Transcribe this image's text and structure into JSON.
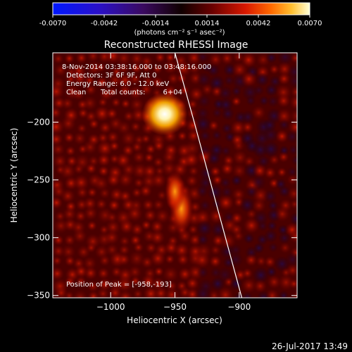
{
  "colorbar": {
    "tick_labels": [
      "-0.0070",
      "-0.0042",
      "-0.0014",
      "0.0014",
      "0.0042",
      "0.0070"
    ],
    "unit_label": "(photons cm⁻² s⁻¹ asec⁻²)",
    "range": [
      -0.007,
      0.007
    ]
  },
  "colors": {
    "background": "#000000",
    "text": "#ffffff",
    "limb_line": "#ffffff"
  },
  "chart_data": {
    "type": "heatmap",
    "title": "Reconstructed RHESSI Image",
    "xlabel": "Heliocentric X (arcsec)",
    "ylabel": "Heliocentric Y (arcsec)",
    "xlim": [
      -1045,
      -855
    ],
    "ylim": [
      -352,
      -140
    ],
    "xticks": [
      -1000,
      -950,
      -900
    ],
    "yticks": [
      -200,
      -250,
      -300,
      -350
    ],
    "xtick_labels": [
      "−1000",
      "−950",
      "−900"
    ],
    "ytick_labels": [
      "−200",
      "−250",
      "−300",
      "−350"
    ],
    "annotations": {
      "time_range": "8-Nov-2014 03:38:16.000 to 03:48:16.000",
      "detectors": "Detectors: 3F 6F 9F, Att 0",
      "energy": "Energy Range: 6.0 - 12.0 keV",
      "method": "Clean",
      "total_counts": "Total counts: ",
      "total_counts_value": "6+04",
      "peak": "Position of Peak = [-958,-193]"
    },
    "sources": [
      {
        "x": -958,
        "y": -193,
        "intensity": 1.0
      },
      {
        "x": -945,
        "y": -275,
        "intensity": 0.75
      },
      {
        "x": -950,
        "y": -260,
        "intensity": 0.55
      }
    ],
    "limb": [
      [
        -950,
        -140
      ],
      [
        -935,
        -200
      ],
      [
        -918,
        -270
      ],
      [
        -898,
        -352
      ]
    ]
  },
  "footer": {
    "timestamp": "26-Jul-2017 13:49"
  }
}
